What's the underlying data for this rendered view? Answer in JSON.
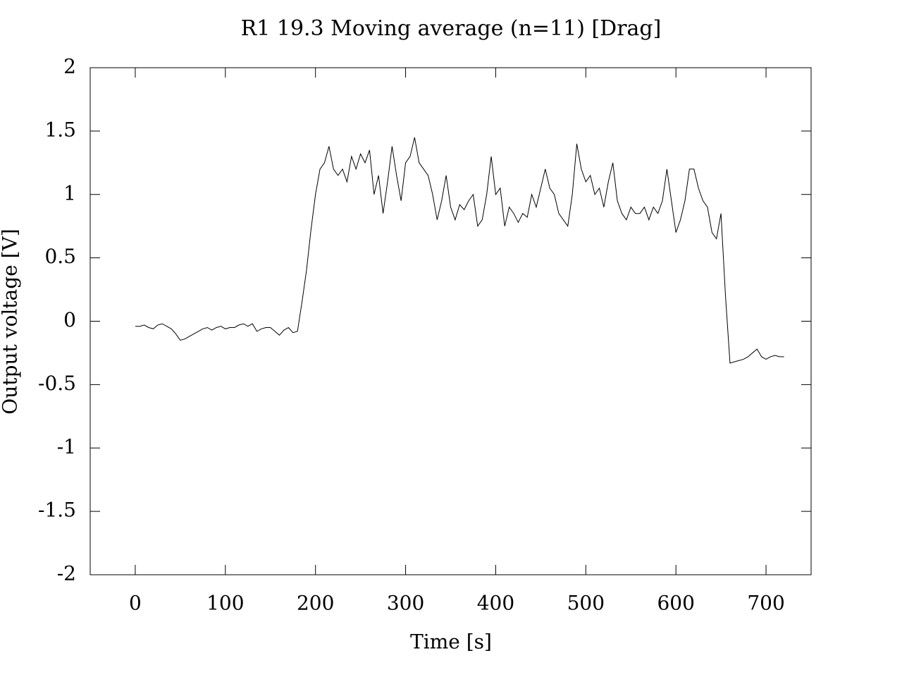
{
  "chart_data": {
    "type": "line",
    "title": "R1 19.3  Moving average (n=11) [Drag]",
    "x_label": "Time [s]",
    "y_label": "Output voltage [V]",
    "color": "#000000",
    "xlim": [
      -50,
      750
    ],
    "ylim": [
      -2,
      2
    ],
    "xticks": [
      0,
      100,
      200,
      300,
      400,
      500,
      600,
      700
    ],
    "yticks": [
      -2,
      -1.5,
      -1,
      -0.5,
      0,
      0.5,
      1,
      1.5,
      2
    ],
    "x": [
      0,
      5,
      10,
      15,
      20,
      25,
      30,
      35,
      40,
      45,
      50,
      55,
      60,
      65,
      70,
      75,
      80,
      85,
      90,
      95,
      100,
      105,
      110,
      115,
      120,
      125,
      130,
      135,
      140,
      145,
      150,
      155,
      160,
      165,
      170,
      175,
      180,
      185,
      190,
      195,
      200,
      205,
      210,
      215,
      220,
      225,
      230,
      235,
      240,
      245,
      250,
      255,
      260,
      265,
      270,
      275,
      280,
      285,
      290,
      295,
      300,
      305,
      310,
      315,
      320,
      325,
      330,
      335,
      340,
      345,
      350,
      355,
      360,
      365,
      370,
      375,
      380,
      385,
      390,
      395,
      400,
      405,
      410,
      415,
      420,
      425,
      430,
      435,
      440,
      445,
      450,
      455,
      460,
      465,
      470,
      475,
      480,
      485,
      490,
      495,
      500,
      505,
      510,
      515,
      520,
      525,
      530,
      535,
      540,
      545,
      550,
      555,
      560,
      565,
      570,
      575,
      580,
      585,
      590,
      595,
      600,
      605,
      610,
      615,
      620,
      625,
      630,
      635,
      640,
      645,
      650,
      655,
      660,
      665,
      670,
      675,
      680,
      685,
      690,
      695,
      700,
      705,
      710,
      715,
      720
    ],
    "values": [
      -0.04,
      -0.04,
      -0.03,
      -0.05,
      -0.06,
      -0.03,
      -0.02,
      -0.04,
      -0.06,
      -0.1,
      -0.15,
      -0.14,
      -0.12,
      -0.1,
      -0.08,
      -0.06,
      -0.05,
      -0.07,
      -0.05,
      -0.04,
      -0.06,
      -0.05,
      -0.05,
      -0.03,
      -0.02,
      -0.04,
      -0.02,
      -0.08,
      -0.06,
      -0.05,
      -0.05,
      -0.08,
      -0.11,
      -0.07,
      -0.05,
      -0.09,
      -0.08,
      0.15,
      0.4,
      0.72,
      1.0,
      1.2,
      1.25,
      1.38,
      1.2,
      1.15,
      1.2,
      1.1,
      1.3,
      1.2,
      1.32,
      1.25,
      1.35,
      1.0,
      1.15,
      0.85,
      1.1,
      1.38,
      1.15,
      0.95,
      1.25,
      1.3,
      1.45,
      1.25,
      1.2,
      1.15,
      1.0,
      0.8,
      0.95,
      1.15,
      0.9,
      0.8,
      0.92,
      0.88,
      0.95,
      1.0,
      0.75,
      0.8,
      1.0,
      1.3,
      1.0,
      1.05,
      0.75,
      0.9,
      0.85,
      0.78,
      0.85,
      0.82,
      1.0,
      0.9,
      1.05,
      1.2,
      1.05,
      1.0,
      0.85,
      0.8,
      0.75,
      1.0,
      1.4,
      1.2,
      1.1,
      1.15,
      1.0,
      1.05,
      0.9,
      1.1,
      1.25,
      0.95,
      0.85,
      0.8,
      0.9,
      0.85,
      0.85,
      0.9,
      0.8,
      0.9,
      0.85,
      0.95,
      1.2,
      0.95,
      0.7,
      0.8,
      0.95,
      1.2,
      1.2,
      1.05,
      0.95,
      0.9,
      0.7,
      0.65,
      0.85,
      0.2,
      -0.33,
      -0.32,
      -0.31,
      -0.3,
      -0.28,
      -0.25,
      -0.22,
      -0.28,
      -0.3,
      -0.28,
      -0.27,
      -0.28,
      -0.28
    ]
  }
}
